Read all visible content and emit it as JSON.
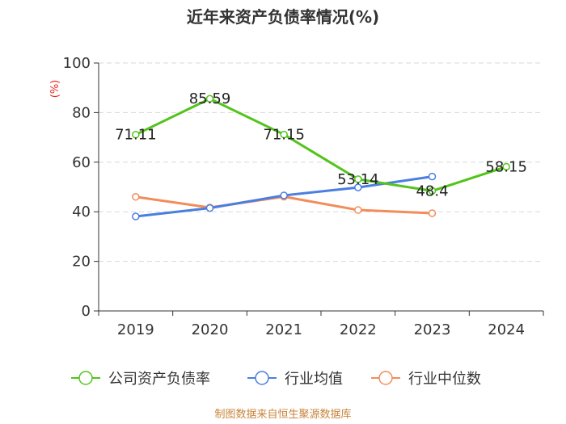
{
  "chart_data": {
    "type": "line",
    "title": "近年来资产负债率情况(%)",
    "ylabel": "(%)",
    "xlabel": "",
    "categories": [
      "2019",
      "2020",
      "2021",
      "2022",
      "2023",
      "2024"
    ],
    "ylim": [
      0,
      100
    ],
    "yticks": [
      0,
      20,
      40,
      60,
      80,
      100
    ],
    "grid": true,
    "legend_position": "bottom",
    "series": [
      {
        "name": "公司资产负债率",
        "color": "#52c41a",
        "values": [
          71.11,
          85.59,
          71.15,
          53.14,
          48.4,
          58.15
        ],
        "labels": [
          "71.11",
          "85.59",
          "71.15",
          "53.14",
          "48.4",
          "58.15"
        ]
      },
      {
        "name": "行业均值",
        "color": "#4a7ee0",
        "values": [
          38.1,
          41.5,
          46.6,
          49.8,
          54.2,
          null
        ]
      },
      {
        "name": "行业中位数",
        "color": "#f28c5a",
        "values": [
          46.0,
          41.7,
          46.1,
          40.7,
          39.4,
          null
        ]
      }
    ]
  },
  "source": "制图数据来自恒生聚源数据库"
}
